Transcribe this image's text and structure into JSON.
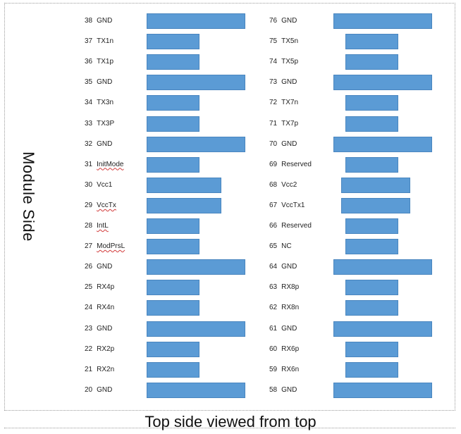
{
  "side_label": "Module Side",
  "caption": "Top side viewed from top",
  "pad_color": "#5b9bd5",
  "left_column": [
    {
      "num": "38",
      "signal": "GND",
      "pad": "long"
    },
    {
      "num": "37",
      "signal": "TX1n",
      "pad": "short"
    },
    {
      "num": "36",
      "signal": "TX1p",
      "pad": "short"
    },
    {
      "num": "35",
      "signal": "GND",
      "pad": "long"
    },
    {
      "num": "34",
      "signal": "TX3n",
      "pad": "short"
    },
    {
      "num": "33",
      "signal": "TX3P",
      "pad": "short"
    },
    {
      "num": "32",
      "signal": "GND",
      "pad": "long"
    },
    {
      "num": "31",
      "signal": "InitMode",
      "pad": "short",
      "squiggle": true
    },
    {
      "num": "30",
      "signal": "Vcc1",
      "pad": "medium"
    },
    {
      "num": "29",
      "signal": "VccTx",
      "pad": "medium",
      "squiggle": true
    },
    {
      "num": "28",
      "signal": "IntL",
      "pad": "short",
      "squiggle": true
    },
    {
      "num": "27",
      "signal": "ModPrsL",
      "pad": "short",
      "squiggle": true
    },
    {
      "num": "26",
      "signal": "GND",
      "pad": "long"
    },
    {
      "num": "25",
      "signal": "RX4p",
      "pad": "short"
    },
    {
      "num": "24",
      "signal": "RX4n",
      "pad": "short"
    },
    {
      "num": "23",
      "signal": "GND",
      "pad": "long"
    },
    {
      "num": "22",
      "signal": "RX2p",
      "pad": "short"
    },
    {
      "num": "21",
      "signal": "RX2n",
      "pad": "short"
    },
    {
      "num": "20",
      "signal": "GND",
      "pad": "long"
    }
  ],
  "right_column": [
    {
      "num": "76",
      "signal": "GND",
      "pad": "long"
    },
    {
      "num": "75",
      "signal": "TX5n",
      "pad": "short"
    },
    {
      "num": "74",
      "signal": "TX5p",
      "pad": "short"
    },
    {
      "num": "73",
      "signal": "GND",
      "pad": "long"
    },
    {
      "num": "72",
      "signal": "TX7n",
      "pad": "short"
    },
    {
      "num": "71",
      "signal": "TX7p",
      "pad": "short"
    },
    {
      "num": "70",
      "signal": "GND",
      "pad": "long"
    },
    {
      "num": "69",
      "signal": "Reserved",
      "pad": "short"
    },
    {
      "num": "68",
      "signal": "Vcc2",
      "pad": "medium"
    },
    {
      "num": "67",
      "signal": "VccTx1",
      "pad": "medium"
    },
    {
      "num": "66",
      "signal": "Reserved",
      "pad": "short"
    },
    {
      "num": "65",
      "signal": "NC",
      "pad": "short"
    },
    {
      "num": "64",
      "signal": "GND",
      "pad": "long"
    },
    {
      "num": "63",
      "signal": "RX8p",
      "pad": "short"
    },
    {
      "num": "62",
      "signal": "RX8n",
      "pad": "short"
    },
    {
      "num": "61",
      "signal": "GND",
      "pad": "long"
    },
    {
      "num": "60",
      "signal": "RX6p",
      "pad": "short"
    },
    {
      "num": "59",
      "signal": "RX6n",
      "pad": "short"
    },
    {
      "num": "58",
      "signal": "GND",
      "pad": "long"
    }
  ]
}
